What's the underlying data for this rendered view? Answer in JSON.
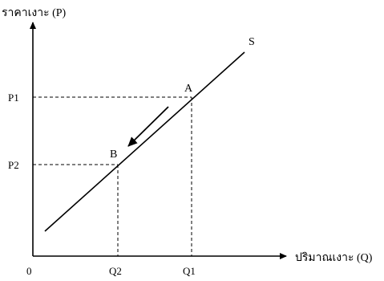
{
  "diagram": {
    "y_axis_label": "ราคาเงาะ (P)",
    "x_axis_label": "ปริมาณเงาะ (Q)",
    "origin_label": "0",
    "curve_label": "S",
    "point_a_label": "A",
    "point_b_label": "B",
    "price_high_label": "P1",
    "price_low_label": "P2",
    "quantity_high_label": "Q1",
    "quantity_low_label": "Q2"
  }
}
